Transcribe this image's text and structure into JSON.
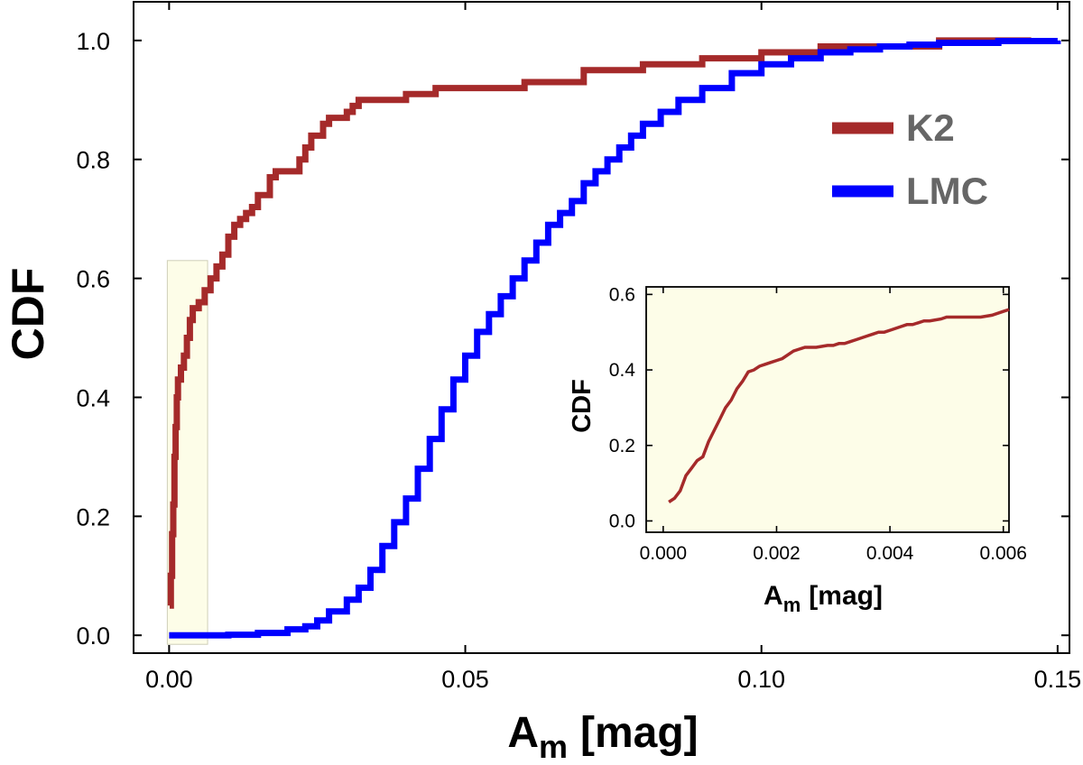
{
  "chart_data": [
    {
      "type": "line",
      "title": "",
      "xlabel": "A",
      "xlabel_sub": "m",
      "xlabel_unit": "[mag]",
      "ylabel": "CDF",
      "xlim": [
        -0.006,
        0.152
      ],
      "ylim": [
        -0.03,
        1.065
      ],
      "xticks": [
        0.0,
        0.05,
        0.1,
        0.15
      ],
      "xtick_labels": [
        "0.00",
        "0.05",
        "0.10",
        "0.15"
      ],
      "yticks": [
        0.0,
        0.2,
        0.4,
        0.6,
        0.8,
        1.0
      ],
      "ytick_labels": [
        "0.0",
        "0.2",
        "0.4",
        "0.6",
        "0.8",
        "1.0"
      ],
      "legend_position": "right",
      "highlight_region": {
        "x": [
          0.0,
          0.0065
        ],
        "y": [
          0.0,
          0.63
        ],
        "color": "#fdfde8"
      },
      "series": [
        {
          "name": "K2",
          "color": "#a52a2a",
          "x": [
            0.0001,
            0.0003,
            0.0005,
            0.0007,
            0.0009,
            0.0011,
            0.0013,
            0.0015,
            0.002,
            0.0025,
            0.003,
            0.0035,
            0.004,
            0.005,
            0.006,
            0.007,
            0.008,
            0.009,
            0.01,
            0.011,
            0.012,
            0.013,
            0.014,
            0.015,
            0.017,
            0.018,
            0.019,
            0.02,
            0.022,
            0.023,
            0.024,
            0.025,
            0.026,
            0.027,
            0.028,
            0.029,
            0.03,
            0.031,
            0.032,
            0.033,
            0.035,
            0.04,
            0.045,
            0.05,
            0.06,
            0.07,
            0.08,
            0.09,
            0.1,
            0.11,
            0.12,
            0.13,
            0.145
          ],
          "y": [
            0.05,
            0.1,
            0.17,
            0.22,
            0.3,
            0.35,
            0.4,
            0.43,
            0.45,
            0.47,
            0.5,
            0.53,
            0.55,
            0.56,
            0.58,
            0.6,
            0.62,
            0.64,
            0.67,
            0.69,
            0.7,
            0.71,
            0.72,
            0.74,
            0.77,
            0.78,
            0.78,
            0.78,
            0.8,
            0.82,
            0.84,
            0.84,
            0.86,
            0.87,
            0.87,
            0.87,
            0.88,
            0.89,
            0.9,
            0.9,
            0.9,
            0.91,
            0.92,
            0.92,
            0.93,
            0.95,
            0.96,
            0.97,
            0.98,
            0.99,
            0.99,
            1.0,
            0.996
          ]
        },
        {
          "name": "LMC",
          "color": "#0000ff",
          "x": [
            0.0,
            0.005,
            0.01,
            0.015,
            0.02,
            0.023,
            0.025,
            0.027,
            0.03,
            0.032,
            0.034,
            0.036,
            0.038,
            0.04,
            0.042,
            0.044,
            0.046,
            0.048,
            0.05,
            0.052,
            0.054,
            0.056,
            0.058,
            0.06,
            0.062,
            0.064,
            0.066,
            0.068,
            0.07,
            0.072,
            0.074,
            0.076,
            0.078,
            0.08,
            0.083,
            0.086,
            0.09,
            0.095,
            0.1,
            0.105,
            0.11,
            0.115,
            0.12,
            0.125,
            0.13,
            0.14,
            0.15
          ],
          "y": [
            0.0,
            0.0,
            0.001,
            0.004,
            0.01,
            0.015,
            0.025,
            0.04,
            0.06,
            0.08,
            0.11,
            0.15,
            0.19,
            0.23,
            0.28,
            0.33,
            0.38,
            0.43,
            0.47,
            0.51,
            0.54,
            0.57,
            0.6,
            0.63,
            0.66,
            0.69,
            0.71,
            0.73,
            0.76,
            0.78,
            0.8,
            0.82,
            0.84,
            0.86,
            0.88,
            0.9,
            0.92,
            0.945,
            0.96,
            0.97,
            0.98,
            0.985,
            0.99,
            0.993,
            0.996,
            0.999,
            1.0
          ]
        }
      ]
    },
    {
      "type": "line",
      "title": "",
      "xlabel": "A",
      "xlabel_sub": "m",
      "xlabel_unit": "[mag]",
      "ylabel": "CDF",
      "background": "#fdfde8",
      "xlim": [
        -0.0003,
        0.0061
      ],
      "ylim": [
        -0.03,
        0.62
      ],
      "xticks": [
        0.0,
        0.002,
        0.004,
        0.006
      ],
      "xtick_labels": [
        "0.000",
        "0.002",
        "0.004",
        "0.006"
      ],
      "yticks": [
        0.0,
        0.2,
        0.4,
        0.6
      ],
      "ytick_labels": [
        "0.0",
        "0.2",
        "0.4",
        "0.6"
      ],
      "series": [
        {
          "name": "K2",
          "color": "#a52a2a",
          "x": [
            0.0001,
            0.0002,
            0.0003,
            0.0004,
            0.0005,
            0.0006,
            0.0007,
            0.0008,
            0.0009,
            0.001,
            0.0011,
            0.0012,
            0.0013,
            0.0014,
            0.0015,
            0.0016,
            0.0017,
            0.0018,
            0.0019,
            0.002,
            0.0021,
            0.0022,
            0.0023,
            0.0024,
            0.0025,
            0.0027,
            0.0029,
            0.003,
            0.0031,
            0.0032,
            0.0033,
            0.0034,
            0.0035,
            0.0036,
            0.0037,
            0.0038,
            0.0039,
            0.004,
            0.0041,
            0.0042,
            0.0043,
            0.0044,
            0.0045,
            0.0046,
            0.0047,
            0.0049,
            0.005,
            0.0053,
            0.0056,
            0.0058,
            0.006,
            0.0061
          ],
          "y": [
            0.05,
            0.06,
            0.08,
            0.12,
            0.14,
            0.16,
            0.17,
            0.21,
            0.24,
            0.27,
            0.3,
            0.32,
            0.35,
            0.37,
            0.395,
            0.4,
            0.41,
            0.415,
            0.42,
            0.425,
            0.43,
            0.44,
            0.45,
            0.455,
            0.46,
            0.46,
            0.465,
            0.465,
            0.47,
            0.47,
            0.475,
            0.48,
            0.485,
            0.49,
            0.495,
            0.5,
            0.5,
            0.505,
            0.51,
            0.515,
            0.52,
            0.52,
            0.525,
            0.53,
            0.53,
            0.535,
            0.54,
            0.54,
            0.54,
            0.545,
            0.555,
            0.56
          ]
        }
      ]
    }
  ]
}
